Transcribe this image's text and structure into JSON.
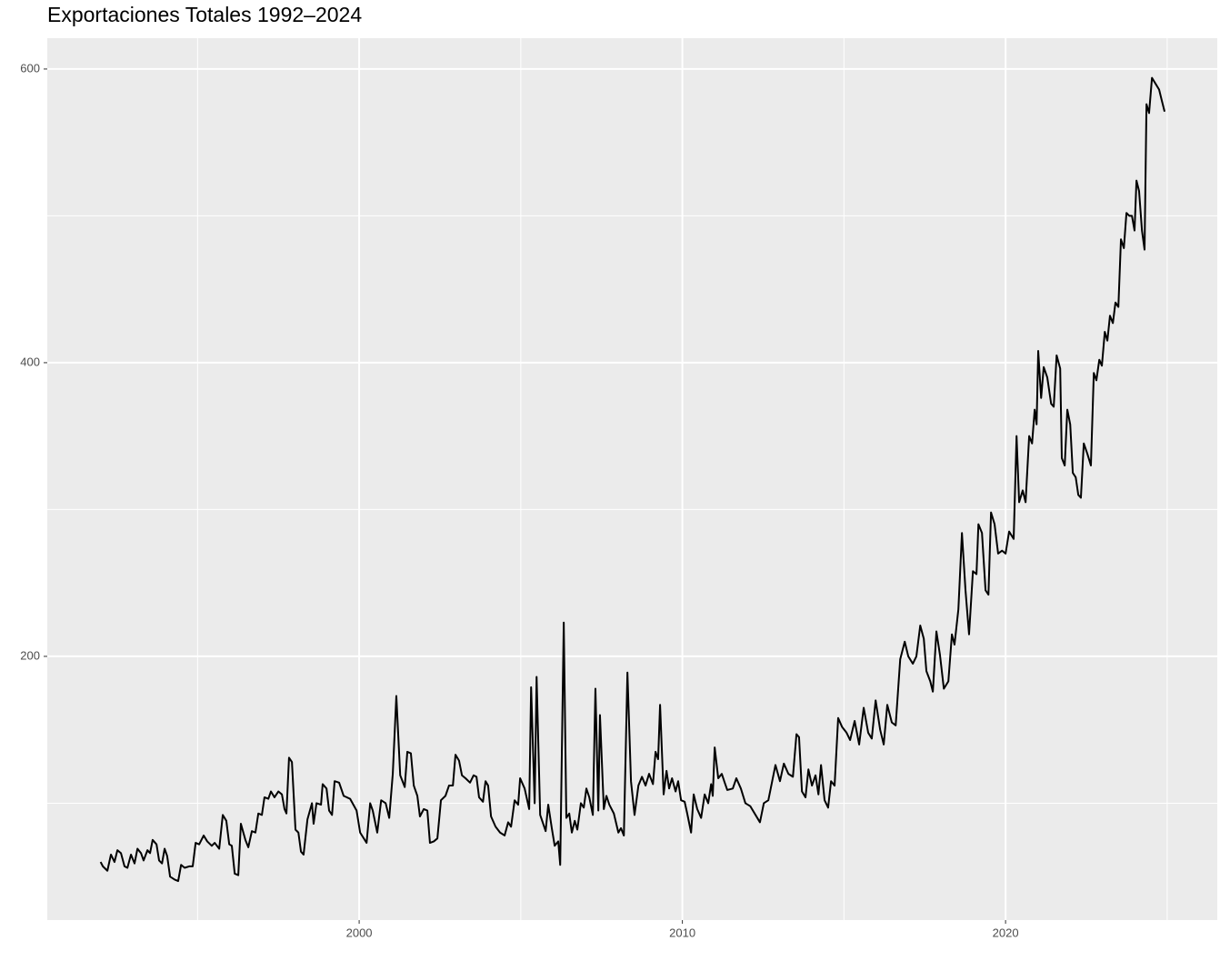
{
  "chart_data": {
    "type": "line",
    "title": "Exportaciones Totales 1992–2024",
    "color": "#000000",
    "grid": true,
    "xlim": [
      1990.35,
      2026.55
    ],
    "xticks": [
      2000,
      2010,
      2020
    ],
    "x_minor_ticks": [
      1995,
      2005,
      2015,
      2025
    ],
    "ylim": [
      20.4,
      621
    ],
    "yticks": [
      200,
      400,
      600
    ],
    "y_minor_ticks": [
      100,
      300,
      500
    ],
    "x": [
      1992.0,
      1992.07,
      1992.21,
      1992.32,
      1992.43,
      1992.52,
      1992.63,
      1992.74,
      1992.83,
      1992.94,
      1993.05,
      1993.14,
      1993.25,
      1993.33,
      1993.45,
      1993.53,
      1993.61,
      1993.73,
      1993.81,
      1993.9,
      1993.98,
      1994.06,
      1994.15,
      1994.29,
      1994.4,
      1994.49,
      1994.6,
      1994.74,
      1994.85,
      1994.94,
      1995.05,
      1995.19,
      1995.3,
      1995.44,
      1995.53,
      1995.67,
      1995.78,
      1995.89,
      1995.98,
      1996.06,
      1996.15,
      1996.26,
      1996.34,
      1996.48,
      1996.57,
      1996.68,
      1996.79,
      1996.88,
      1996.99,
      1997.07,
      1997.19,
      1997.27,
      1997.38,
      1997.5,
      1997.61,
      1997.69,
      1997.75,
      1997.83,
      1997.92,
      1998.03,
      1998.12,
      1998.2,
      1998.28,
      1998.4,
      1998.54,
      1998.59,
      1998.68,
      1998.82,
      1998.87,
      1998.99,
      1999.07,
      1999.16,
      1999.24,
      1999.38,
      1999.52,
      1999.72,
      1999.92,
      2000.03,
      2000.23,
      2000.34,
      2000.42,
      2000.56,
      2000.68,
      2000.82,
      2000.93,
      2001.04,
      2001.15,
      2001.27,
      2001.41,
      2001.49,
      2001.6,
      2001.69,
      2001.8,
      2001.88,
      2002.0,
      2002.11,
      2002.19,
      2002.31,
      2002.42,
      2002.53,
      2002.67,
      2002.78,
      2002.9,
      2002.98,
      2003.09,
      2003.18,
      2003.29,
      2003.43,
      2003.54,
      2003.63,
      2003.71,
      2003.83,
      2003.91,
      2003.99,
      2004.08,
      2004.22,
      2004.36,
      2004.5,
      2004.61,
      2004.7,
      2004.81,
      2004.92,
      2004.98,
      2005.12,
      2005.26,
      2005.32,
      2005.43,
      2005.49,
      2005.6,
      2005.77,
      2005.85,
      2005.96,
      2006.05,
      2006.16,
      2006.22,
      2006.33,
      2006.41,
      2006.5,
      2006.58,
      2006.67,
      2006.75,
      2006.86,
      2006.95,
      2007.03,
      2007.12,
      2007.23,
      2007.31,
      2007.4,
      2007.45,
      2007.57,
      2007.65,
      2007.74,
      2007.88,
      2008.02,
      2008.1,
      2008.19,
      2008.3,
      2008.41,
      2008.52,
      2008.64,
      2008.75,
      2008.86,
      2008.97,
      2009.09,
      2009.17,
      2009.25,
      2009.31,
      2009.42,
      2009.51,
      2009.59,
      2009.68,
      2009.79,
      2009.87,
      2009.96,
      2010.07,
      2010.15,
      2010.27,
      2010.35,
      2010.46,
      2010.58,
      2010.69,
      2010.8,
      2010.89,
      2010.94,
      2011.0,
      2011.11,
      2011.22,
      2011.31,
      2011.39,
      2011.56,
      2011.67,
      2011.81,
      2011.95,
      2012.1,
      2012.4,
      2012.52,
      2012.66,
      2012.77,
      2012.88,
      2013.02,
      2013.14,
      2013.28,
      2013.42,
      2013.53,
      2013.61,
      2013.7,
      2013.81,
      2013.9,
      2014.01,
      2014.12,
      2014.21,
      2014.29,
      2014.4,
      2014.51,
      2014.6,
      2014.71,
      2014.82,
      2014.94,
      2015.08,
      2015.19,
      2015.33,
      2015.47,
      2015.61,
      2015.75,
      2015.86,
      2015.98,
      2016.12,
      2016.23,
      2016.34,
      2016.48,
      2016.6,
      2016.74,
      2016.88,
      2016.99,
      2017.13,
      2017.24,
      2017.36,
      2017.47,
      2017.55,
      2017.67,
      2017.75,
      2017.86,
      2017.97,
      2018.09,
      2018.23,
      2018.34,
      2018.42,
      2018.54,
      2018.65,
      2018.76,
      2018.87,
      2018.99,
      2019.1,
      2019.16,
      2019.27,
      2019.38,
      2019.47,
      2019.55,
      2019.66,
      2019.77,
      2019.89,
      2020.0,
      2020.11,
      2020.25,
      2020.34,
      2020.42,
      2020.53,
      2020.62,
      2020.73,
      2020.82,
      2020.9,
      2020.96,
      2021.01,
      2021.1,
      2021.18,
      2021.29,
      2021.41,
      2021.49,
      2021.58,
      2021.69,
      2021.74,
      2021.83,
      2021.91,
      2022.0,
      2022.08,
      2022.17,
      2022.25,
      2022.33,
      2022.42,
      2022.53,
      2022.64,
      2022.73,
      2022.81,
      2022.9,
      2022.98,
      2023.07,
      2023.15,
      2023.23,
      2023.32,
      2023.4,
      2023.49,
      2023.57,
      2023.66,
      2023.74,
      2023.83,
      2023.91,
      2023.99,
      2024.05,
      2024.13,
      2024.22,
      2024.3,
      2024.36,
      2024.44,
      2024.53,
      2024.64,
      2024.75,
      2024.84,
      2024.92
    ],
    "values": [
      60,
      57,
      54,
      65,
      60,
      68,
      66,
      57,
      56,
      65,
      59,
      69,
      66,
      61,
      68,
      66,
      75,
      72,
      61,
      59,
      69,
      64,
      50,
      48,
      47,
      58,
      56,
      57,
      57,
      73,
      72,
      78,
      74,
      71,
      73,
      69,
      92,
      88,
      72,
      71,
      52,
      51,
      86,
      75,
      70,
      81,
      80,
      93,
      92,
      104,
      103,
      108,
      104,
      108,
      106,
      96,
      93,
      131,
      128,
      82,
      80,
      67,
      65,
      89,
      100,
      86,
      100,
      99,
      113,
      110,
      95,
      92,
      115,
      114,
      105,
      103,
      95,
      80,
      73,
      100,
      95,
      80,
      102,
      100,
      90,
      120,
      173,
      119,
      111,
      135,
      134,
      112,
      105,
      91,
      96,
      95,
      73,
      74,
      76,
      102,
      105,
      112,
      112,
      133,
      129,
      119,
      117,
      114,
      119,
      118,
      104,
      101,
      115,
      112,
      91,
      84,
      80,
      78,
      87,
      84,
      102,
      99,
      117,
      110,
      96,
      179,
      100,
      186,
      92,
      81,
      99,
      83,
      71,
      74,
      58,
      223,
      90,
      93,
      80,
      88,
      82,
      100,
      97,
      110,
      104,
      92,
      178,
      95,
      160,
      96,
      105,
      99,
      93,
      80,
      83,
      78,
      189,
      115,
      92,
      112,
      118,
      112,
      120,
      113,
      135,
      130,
      167,
      106,
      122,
      110,
      117,
      108,
      115,
      102,
      101,
      93,
      80,
      106,
      96,
      90,
      106,
      100,
      113,
      105,
      138,
      117,
      120,
      114,
      109,
      110,
      117,
      110,
      100,
      98,
      87,
      100,
      102,
      114,
      126,
      115,
      127,
      120,
      118,
      147,
      145,
      108,
      104,
      123,
      112,
      119,
      106,
      126,
      102,
      97,
      115,
      112,
      158,
      152,
      148,
      143,
      156,
      140,
      165,
      148,
      144,
      170,
      150,
      140,
      167,
      155,
      153,
      198,
      210,
      200,
      195,
      200,
      221,
      212,
      190,
      183,
      176,
      217,
      201,
      178,
      183,
      215,
      208,
      232,
      284,
      245,
      215,
      258,
      256,
      290,
      284,
      245,
      242,
      298,
      290,
      270,
      272,
      270,
      285,
      280,
      350,
      305,
      313,
      305,
      350,
      345,
      368,
      358,
      408,
      376,
      397,
      390,
      372,
      370,
      405,
      396,
      335,
      330,
      368,
      358,
      325,
      322,
      310,
      308,
      345,
      338,
      330,
      393,
      388,
      402,
      398,
      421,
      415,
      432,
      427,
      441,
      438,
      484,
      478,
      502,
      500,
      500,
      490,
      524,
      517,
      490,
      477,
      576,
      570,
      594,
      590,
      586,
      578,
      571
    ]
  }
}
